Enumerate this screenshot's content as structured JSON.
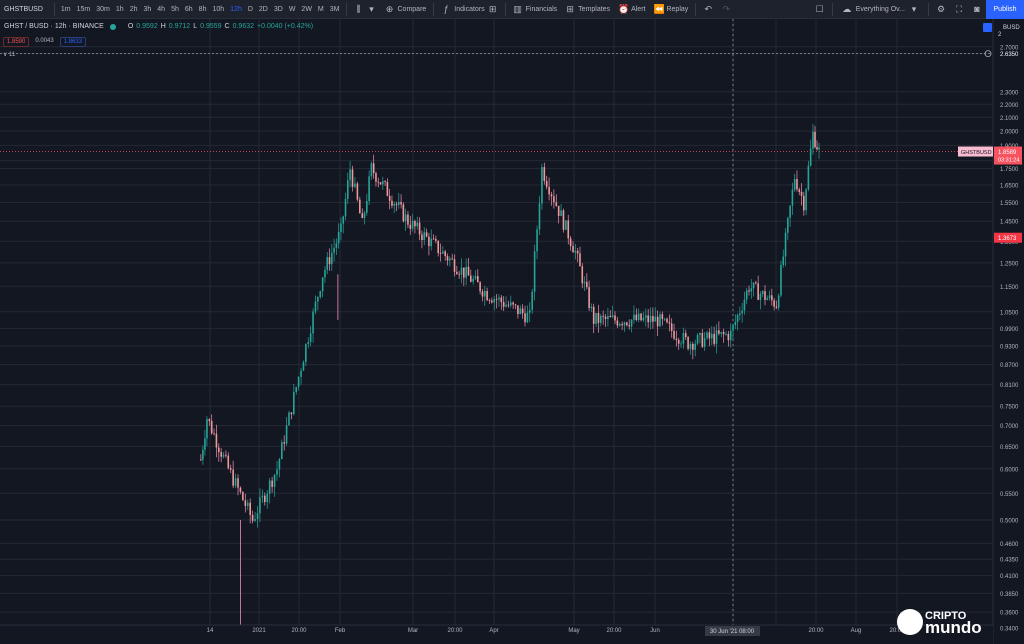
{
  "toolbar": {
    "symbol": "GHSTBUSD",
    "intervals": [
      "1m",
      "15m",
      "30m",
      "1h",
      "2h",
      "3h",
      "4h",
      "5h",
      "6h",
      "8h",
      "10h",
      "12h",
      "D",
      "2D",
      "3D",
      "W",
      "2W",
      "M",
      "3M"
    ],
    "active_interval": "12h",
    "compare_label": "Compare",
    "indicators_label": "Indicators",
    "financials_label": "Financials",
    "templates_label": "Templates",
    "alert_label": "Alert",
    "replay_label": "Replay",
    "layout_label": "Everything Ov...",
    "publish_label": "Publish"
  },
  "legend": {
    "title": "GHST / BUSD · 12h · BINANCE",
    "open_k": "O",
    "open_v": "0.9592",
    "high_k": "H",
    "high_v": "0.9712",
    "low_k": "L",
    "low_v": "0.9559",
    "close_k": "C",
    "close_v": "0.9632",
    "change": "+0.0040 (+0.42%)",
    "sell_price": "1.8590",
    "spread": "0.0043",
    "buy_price": "1.8633",
    "indicator_toggle": "∨  11"
  },
  "watermark": {
    "line1": "CRIPTO",
    "line2": "mundo"
  },
  "chart_data": {
    "type": "candlestick",
    "symbol_label": "GHSTBUSD",
    "currency": "BUSD",
    "price_axis": {
      "ticks": [
        "2.7000",
        "2.6350",
        "2.3000",
        "2.2000",
        "2.1000",
        "2.0000",
        "1.9000",
        "1.8000",
        "1.7500",
        "1.6500",
        "1.5500",
        "1.4500",
        "1.3500",
        "1.2500",
        "1.1500",
        "1.0500",
        "0.9900",
        "0.9300",
        "0.8700",
        "0.8100",
        "0.7500",
        "0.7000",
        "0.6500",
        "0.6000",
        "0.5500",
        "0.5000",
        "0.4600",
        "0.4350",
        "0.4100",
        "0.3850",
        "0.3600",
        "0.3400"
      ],
      "scale": "log",
      "ylim": [
        0.335,
        2.75
      ]
    },
    "time_axis": {
      "ticks": [
        "14",
        "2021",
        "20:00",
        "Feb",
        "Mar",
        "20:00",
        "Apr",
        "May",
        "20:00",
        "Jun",
        "30 Jun '21",
        "08:00",
        "20:00",
        "Aug",
        "20:00"
      ],
      "crosshair_label_date": "30 Jun '21",
      "crosshair_label_time": "08:00"
    },
    "last_price": {
      "label": "GHSTBUSD",
      "value": "1.8589",
      "countdown": "03:31:24",
      "color": "#f7525f"
    },
    "marker_price": {
      "value": "1.3673",
      "color": "#f23645"
    },
    "alert_line_price": "2.6350",
    "top_price_label": "2",
    "colors": {
      "up": "#26a69a",
      "down": "#ef9a9a",
      "wick_up": "#26a69a",
      "wick_down": "#f48fb1",
      "grid": "#242833",
      "background": "#131722"
    },
    "key_points": [
      {
        "x": "Jan 11 2021",
        "price": 0.62
      },
      {
        "x": "Jan 13 2021",
        "price": 0.72
      },
      {
        "x": "Jan 20 2021",
        "price": 0.6
      },
      {
        "x": "Jan 28 2021",
        "price": 0.5
      },
      {
        "x": "Feb 05 2021",
        "price": 0.6
      },
      {
        "x": "Feb 20 2021",
        "price": 1.2
      },
      {
        "x": "Feb 26 2021",
        "price": 1.4
      },
      {
        "x": "Mar 01 2021",
        "price": 1.75
      },
      {
        "x": "Mar 05 2021",
        "price": 1.43
      },
      {
        "x": "Mar 08 2021",
        "price": 1.75
      },
      {
        "x": "Mar 20 2021",
        "price": 1.45
      },
      {
        "x": "Apr 15 2021",
        "price": 1.12
      },
      {
        "x": "Apr 29 2021",
        "price": 1.03
      },
      {
        "x": "May 03 2021",
        "price": 1.75
      },
      {
        "x": "May 14 2021",
        "price": 1.3
      },
      {
        "x": "May 20 2021",
        "price": 1.02
      },
      {
        "x": "Jun 10 2021",
        "price": 1.02
      },
      {
        "x": "Jun 20 2021",
        "price": 0.94
      },
      {
        "x": "Jul 04 2021",
        "price": 0.97
      },
      {
        "x": "Jul 10 2021",
        "price": 1.15
      },
      {
        "x": "Jul 19 2021",
        "price": 1.08
      },
      {
        "x": "Jul 25 2021",
        "price": 1.7
      },
      {
        "x": "Jul 28 2021",
        "price": 1.55
      },
      {
        "x": "Jul 31 2021",
        "price": 1.98
      },
      {
        "x": "Aug 02 2021",
        "price": 1.86
      }
    ]
  }
}
